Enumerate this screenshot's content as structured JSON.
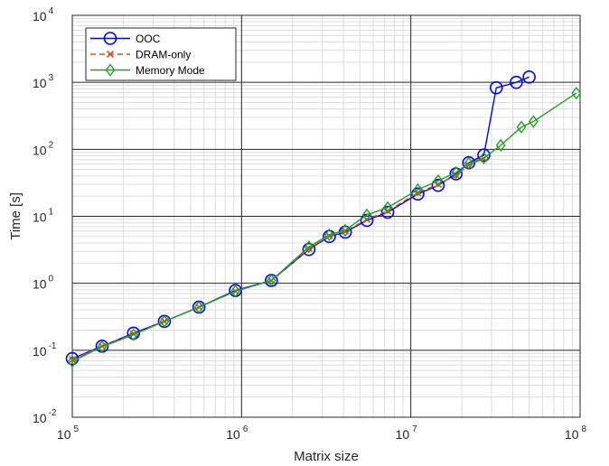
{
  "chart_data": {
    "type": "line",
    "xlabel": "Matrix size",
    "ylabel": "Time [s]",
    "xscale": "log",
    "yscale": "log",
    "xlim": [
      100000,
      100000000
    ],
    "ylim": [
      0.01,
      10000
    ],
    "grid": true,
    "minor_grid": true,
    "legend_position": "top-left",
    "x_ticks": [
      {
        "base": "10",
        "exp": "5"
      },
      {
        "base": "10",
        "exp": "6"
      },
      {
        "base": "10",
        "exp": "7"
      },
      {
        "base": "10",
        "exp": "8"
      }
    ],
    "y_ticks": [
      {
        "base": "10",
        "exp": "-2"
      },
      {
        "base": "10",
        "exp": "-1"
      },
      {
        "base": "10",
        "exp": "0"
      },
      {
        "base": "10",
        "exp": "1"
      },
      {
        "base": "10",
        "exp": "2"
      },
      {
        "base": "10",
        "exp": "3"
      },
      {
        "base": "10",
        "exp": "4"
      }
    ],
    "series": [
      {
        "name": "OOC",
        "color": "#0000ff",
        "marker": "circle",
        "linestyle": "solid",
        "x": [
          100000,
          150000,
          230000,
          350000,
          560000,
          920000,
          1500000,
          2500000,
          3300000,
          4100000,
          5500000,
          7300000,
          11000000,
          14500000,
          18500000,
          22000000,
          27000000,
          32000000,
          42000000,
          50000000
        ],
        "y": [
          0.075,
          0.115,
          0.18,
          0.27,
          0.44,
          0.78,
          1.1,
          3.2,
          5.0,
          5.8,
          8.7,
          11.5,
          21.5,
          29,
          43,
          63,
          82,
          830,
          1000,
          1200
        ]
      },
      {
        "name": "DRAM-only",
        "color": "#d95319",
        "marker": "x",
        "linestyle": "dashed",
        "x": [
          100000,
          150000,
          230000,
          350000,
          560000,
          920000,
          1500000,
          2500000,
          3300000,
          4100000,
          5500000,
          7300000,
          11000000,
          14500000,
          18500000,
          22000000,
          27000000
        ],
        "y": [
          0.072,
          0.115,
          0.175,
          0.27,
          0.44,
          0.76,
          1.1,
          3.3,
          5.1,
          6.0,
          9.0,
          12.0,
          22.5,
          30,
          41,
          58,
          73
        ]
      },
      {
        "name": "Memory Mode",
        "color": "#22a022",
        "marker": "diamond",
        "linestyle": "solid",
        "x": [
          100000,
          150000,
          230000,
          350000,
          560000,
          920000,
          1500000,
          2500000,
          3300000,
          4100000,
          5500000,
          7300000,
          11000000,
          14500000,
          18500000,
          22000000,
          27000000,
          34000000,
          45000000,
          53000000,
          95000000
        ],
        "y": [
          0.068,
          0.113,
          0.17,
          0.27,
          0.44,
          0.76,
          1.1,
          3.5,
          5.3,
          6.2,
          10.5,
          13.5,
          25,
          34,
          45,
          62,
          74,
          115,
          215,
          260,
          690
        ]
      }
    ]
  }
}
